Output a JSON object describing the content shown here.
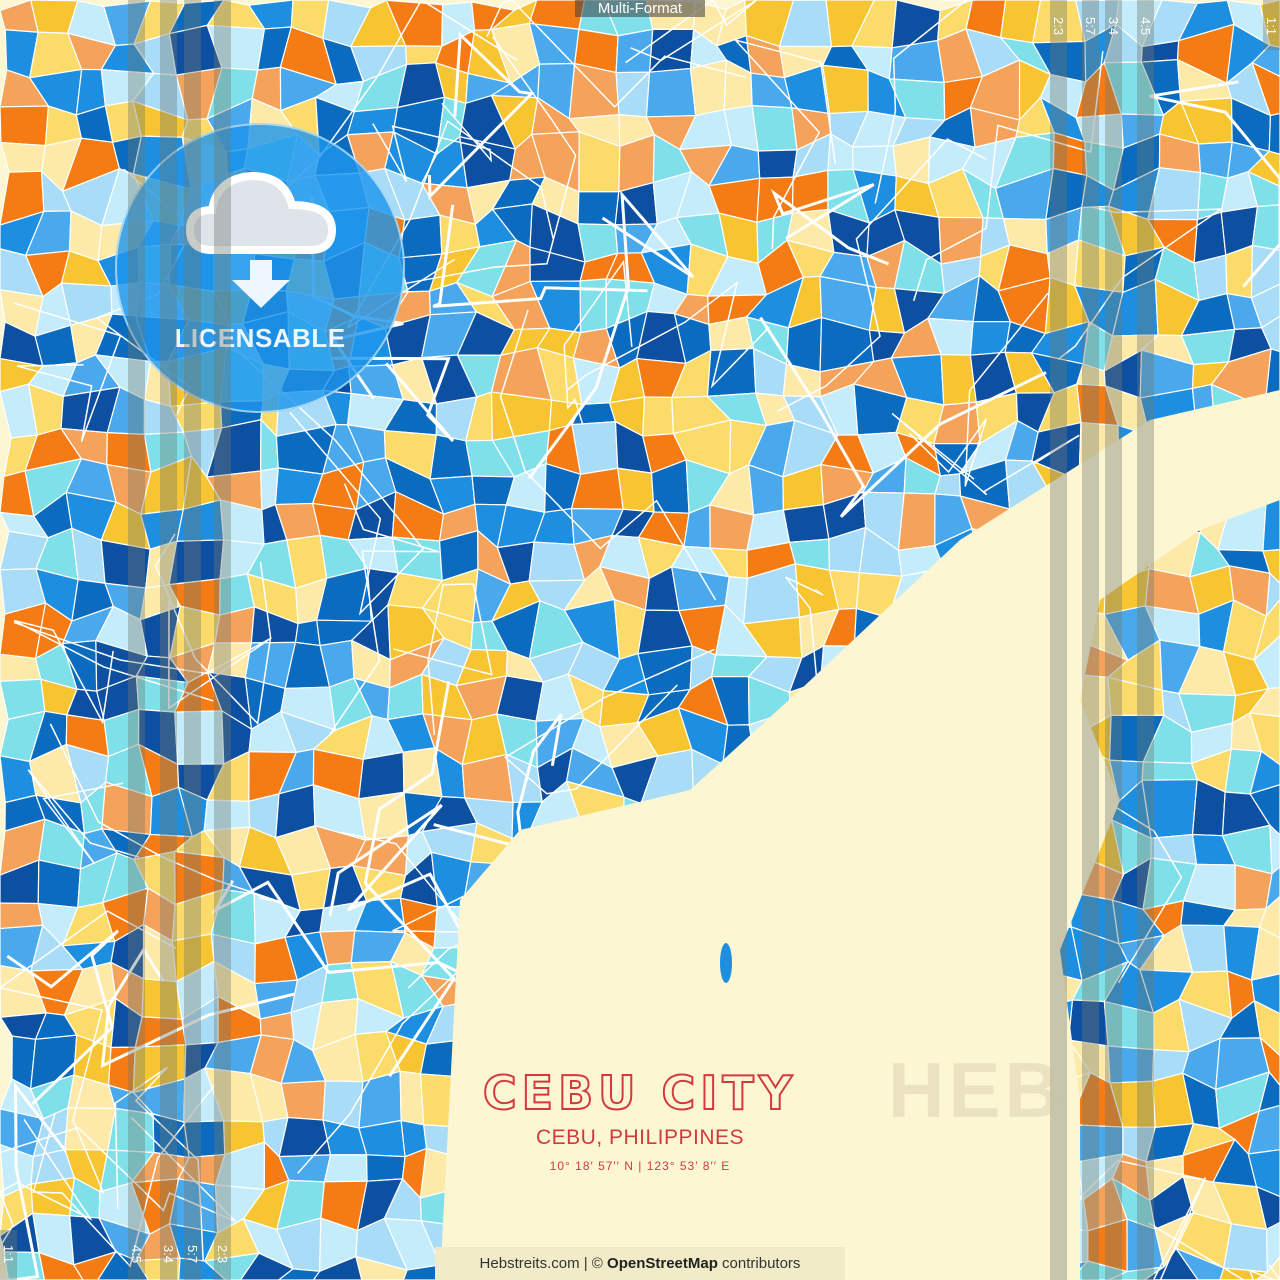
{
  "top_label": "Multi-Format",
  "badge": {
    "icon": "cloud-download-icon",
    "label": "LICENSABLE"
  },
  "aspect_labels_top": [
    "2:3",
    "5:7",
    "3:4",
    "4:5",
    "1:1"
  ],
  "aspect_labels_bottom": [
    "1:1",
    "4:5",
    "3:4",
    "5:7",
    "2:3"
  ],
  "title": {
    "city": "CEBU CITY",
    "region": "CEBU, PHILIPPINES",
    "coords": "10°  18′  57′′ N  |  123°  53′  8′′ E"
  },
  "watermark": "HEB",
  "attribution": {
    "site": "Hebstreits.com",
    "sep": " | © ",
    "osm": "OpenStreetMap",
    "suffix": " contributors"
  },
  "colors": {
    "sea": "#fdf6d3",
    "title": "#d23a3e",
    "palette": [
      "#0a6bbf",
      "#1e8fe0",
      "#4aa8ec",
      "#a9dcf7",
      "#7fe0ea",
      "#f7c531",
      "#fbdc6a",
      "#fde9a8",
      "#f57c14",
      "#f5a25a",
      "#0d4fa0",
      "#c4ecfb"
    ]
  }
}
